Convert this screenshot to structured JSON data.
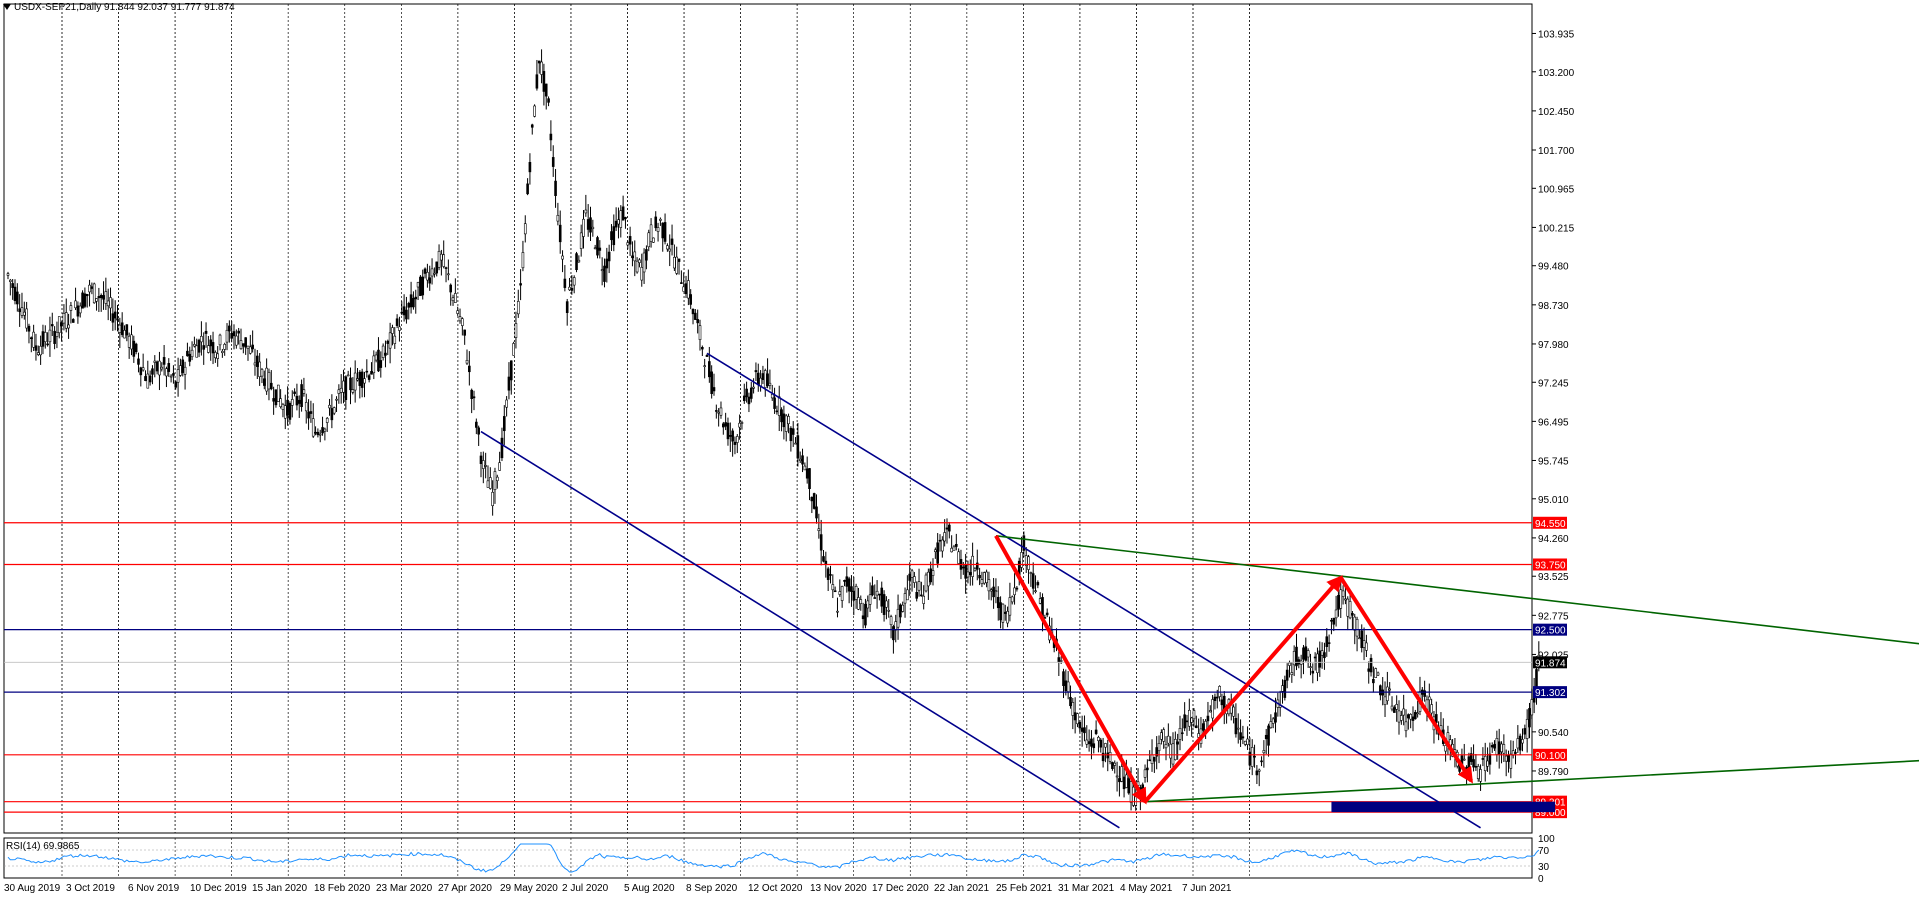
{
  "header": {
    "symbol_line": "USDX-SEP21,Daily  91.844 92.037 91.777 91.874"
  },
  "rsi_panel": {
    "label": "RSI(14) 69.9865",
    "levels": [
      100,
      70,
      30,
      0
    ],
    "level_labels": [
      "100",
      "70",
      "30",
      "0"
    ]
  },
  "colors": {
    "background": "#ffffff",
    "candles": "#000000",
    "grid": "#000000",
    "resistance_red": "#ff0000",
    "level_navy": "#000080",
    "channel_blue": "#00008b",
    "trend_green": "#006400",
    "arrow_red": "#ff0000",
    "current_price_badge": "#000000",
    "rsi_line": "#1e90ff"
  },
  "chart_data": {
    "type": "candlestick",
    "title": "USDX-SEP21,Daily",
    "timeframe": "Daily",
    "ohlc_last": {
      "open": 91.844,
      "high": 92.037,
      "low": 91.777,
      "close": 91.874
    },
    "x_tick_labels": [
      "30 Aug 2019",
      "3 Oct 2019",
      "6 Nov 2019",
      "10 Dec 2019",
      "15 Jan 2020",
      "18 Feb 2020",
      "23 Mar 2020",
      "27 Apr 2020",
      "29 May 2020",
      "2 Jul 2020",
      "5 Aug 2020",
      "8 Sep 2020",
      "12 Oct 2020",
      "13 Nov 2020",
      "17 Dec 2020",
      "22 Jan 2021",
      "25 Feb 2021",
      "31 Mar 2021",
      "4 May 2021",
      "7 Jun 2021"
    ],
    "y_tick_labels": [
      "103.935",
      "103.200",
      "102.450",
      "101.700",
      "100.965",
      "100.215",
      "99.480",
      "98.730",
      "97.980",
      "97.245",
      "96.495",
      "95.745",
      "95.010",
      "94.260",
      "93.525",
      "92.775",
      "92.025",
      "90.540",
      "89.790"
    ],
    "ylim": [
      88.6,
      104.5
    ],
    "price_path": [
      [
        0,
        99.3
      ],
      [
        6,
        98.7
      ],
      [
        12,
        97.9
      ],
      [
        20,
        98.2
      ],
      [
        28,
        98.6
      ],
      [
        35,
        99.0
      ],
      [
        40,
        98.9
      ],
      [
        48,
        98.4
      ],
      [
        55,
        97.8
      ],
      [
        60,
        97.3
      ],
      [
        66,
        97.6
      ],
      [
        72,
        97.2
      ],
      [
        78,
        97.8
      ],
      [
        84,
        98.1
      ],
      [
        90,
        97.9
      ],
      [
        96,
        98.2
      ],
      [
        102,
        98.0
      ],
      [
        108,
        97.5
      ],
      [
        114,
        97.1
      ],
      [
        120,
        96.7
      ],
      [
        126,
        97.0
      ],
      [
        132,
        96.3
      ],
      [
        138,
        96.6
      ],
      [
        144,
        97.1
      ],
      [
        150,
        97.3
      ],
      [
        156,
        97.5
      ],
      [
        162,
        97.8
      ],
      [
        168,
        98.4
      ],
      [
        174,
        98.8
      ],
      [
        180,
        99.3
      ],
      [
        186,
        99.6
      ],
      [
        190,
        99.1
      ],
      [
        196,
        98.1
      ],
      [
        200,
        96.8
      ],
      [
        204,
        95.6
      ],
      [
        208,
        95.1
      ],
      [
        212,
        96.0
      ],
      [
        216,
        97.5
      ],
      [
        220,
        99.0
      ],
      [
        224,
        101.5
      ],
      [
        228,
        103.5
      ],
      [
        232,
        102.5
      ],
      [
        236,
        100.5
      ],
      [
        240,
        98.8
      ],
      [
        244,
        99.5
      ],
      [
        248,
        100.4
      ],
      [
        252,
        100.0
      ],
      [
        256,
        99.4
      ],
      [
        260,
        100.1
      ],
      [
        264,
        100.5
      ],
      [
        268,
        99.6
      ],
      [
        272,
        99.4
      ],
      [
        276,
        100.1
      ],
      [
        280,
        100.3
      ],
      [
        284,
        99.9
      ],
      [
        288,
        99.4
      ],
      [
        292,
        99.0
      ],
      [
        296,
        98.3
      ],
      [
        300,
        97.6
      ],
      [
        304,
        96.9
      ],
      [
        308,
        96.4
      ],
      [
        312,
        96.1
      ],
      [
        316,
        96.8
      ],
      [
        320,
        97.2
      ],
      [
        324,
        97.4
      ],
      [
        328,
        97.0
      ],
      [
        332,
        96.7
      ],
      [
        336,
        96.3
      ],
      [
        340,
        95.9
      ],
      [
        344,
        95.4
      ],
      [
        348,
        94.4
      ],
      [
        352,
        93.5
      ],
      [
        356,
        93.0
      ],
      [
        360,
        93.4
      ],
      [
        364,
        93.2
      ],
      [
        368,
        92.8
      ],
      [
        372,
        93.3
      ],
      [
        376,
        93.0
      ],
      [
        380,
        92.4
      ],
      [
        384,
        93.0
      ],
      [
        388,
        93.5
      ],
      [
        392,
        93.1
      ],
      [
        396,
        93.6
      ],
      [
        400,
        94.1
      ],
      [
        404,
        94.3
      ],
      [
        408,
        93.9
      ],
      [
        412,
        93.6
      ],
      [
        416,
        93.8
      ],
      [
        420,
        93.4
      ],
      [
        424,
        93.1
      ],
      [
        428,
        92.7
      ],
      [
        432,
        93.3
      ],
      [
        436,
        94.1
      ],
      [
        440,
        93.5
      ],
      [
        444,
        92.9
      ],
      [
        448,
        92.4
      ],
      [
        452,
        91.8
      ],
      [
        456,
        91.2
      ],
      [
        460,
        90.6
      ],
      [
        464,
        90.3
      ],
      [
        468,
        90.4
      ],
      [
        472,
        90.0
      ],
      [
        476,
        89.9
      ],
      [
        480,
        89.5
      ],
      [
        484,
        89.3
      ],
      [
        488,
        89.6
      ],
      [
        492,
        90.2
      ],
      [
        496,
        90.4
      ],
      [
        500,
        90.1
      ],
      [
        504,
        90.6
      ],
      [
        508,
        90.8
      ],
      [
        512,
        90.5
      ],
      [
        516,
        90.9
      ],
      [
        520,
        91.2
      ],
      [
        524,
        91.0
      ],
      [
        528,
        90.6
      ],
      [
        532,
        90.2
      ],
      [
        536,
        89.9
      ],
      [
        540,
        90.3
      ],
      [
        544,
        90.9
      ],
      [
        548,
        91.4
      ],
      [
        552,
        91.9
      ],
      [
        556,
        92.1
      ],
      [
        560,
        91.7
      ],
      [
        564,
        92.0
      ],
      [
        568,
        92.6
      ],
      [
        572,
        93.1
      ],
      [
        576,
        92.9
      ],
      [
        580,
        92.4
      ],
      [
        584,
        91.9
      ],
      [
        588,
        91.5
      ],
      [
        592,
        91.2
      ],
      [
        596,
        91.0
      ],
      [
        600,
        90.7
      ],
      [
        604,
        91.0
      ],
      [
        608,
        91.3
      ],
      [
        612,
        90.8
      ],
      [
        616,
        90.4
      ],
      [
        620,
        90.2
      ],
      [
        624,
        89.9
      ],
      [
        628,
        90.0
      ],
      [
        632,
        89.8
      ],
      [
        636,
        90.1
      ],
      [
        640,
        90.3
      ],
      [
        644,
        90.0
      ],
      [
        648,
        90.2
      ],
      [
        652,
        90.6
      ],
      [
        655,
        91.2
      ],
      [
        657,
        91.9
      ]
    ],
    "horizontal_levels": [
      {
        "price": 94.55,
        "label": "94.550",
        "style": "red"
      },
      {
        "price": 93.75,
        "label": "93.750",
        "style": "red"
      },
      {
        "price": 92.5,
        "label": "92.500",
        "style": "navy"
      },
      {
        "price": 91.302,
        "label": "91.302",
        "style": "navy"
      },
      {
        "price": 90.1,
        "label": "90.100",
        "style": "red"
      },
      {
        "price": 89.201,
        "label": "89.201",
        "style": "red"
      },
      {
        "price": 89.0,
        "label": "89.000",
        "style": "red"
      }
    ],
    "current_price": {
      "price": 91.874,
      "label": "91.874"
    },
    "trendlines": [
      {
        "kind": "channel-upper",
        "from": [
          300,
          97.8
        ],
        "to": [
          632,
          88.7
        ]
      },
      {
        "kind": "channel-lower",
        "from": [
          203,
          96.3
        ],
        "to": [
          477,
          88.7
        ]
      },
      {
        "kind": "green-upper",
        "from": [
          424,
          94.3
        ],
        "to": [
          826,
          92.2
        ]
      },
      {
        "kind": "green-lower",
        "from": [
          488,
          89.2
        ],
        "to": [
          826,
          90.0
        ]
      }
    ],
    "arrows": [
      {
        "from": [
          424,
          94.3
        ],
        "to": [
          488,
          89.2
        ]
      },
      {
        "from": [
          488,
          89.2
        ],
        "to": [
          572,
          93.5
        ]
      },
      {
        "from": [
          572,
          93.5
        ],
        "to": [
          628,
          89.6
        ]
      }
    ],
    "zone": {
      "from_x": 568,
      "to_x": 664,
      "price_low": 89.0,
      "price_high": 89.2
    },
    "rsi_last": 69.9865
  }
}
